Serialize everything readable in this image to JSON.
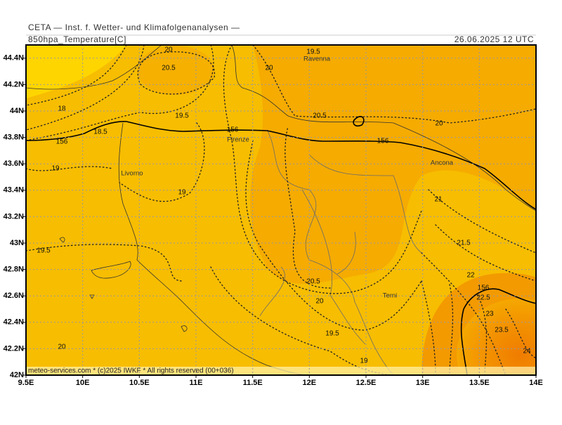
{
  "header": {
    "institute": "CETA — Inst. f. Wetter- und Klimafolgenanalysen —",
    "field": "850hpa_Temperature[C]",
    "valid_time": "26.06.2025 12 UTC"
  },
  "footer": "meteo-services.com * (c)2025 IWKF * All rights reserved (00+036)",
  "axes": {
    "lat_labels": [
      "42N",
      "42.2N",
      "42.4N",
      "42.6N",
      "42.8N",
      "43N",
      "43.2N",
      "43.4N",
      "43.6N",
      "43.8N",
      "44N",
      "44.2N",
      "44.4N"
    ],
    "lon_labels": [
      "9.5E",
      "10E",
      "10.5E",
      "11E",
      "11.5E",
      "12E",
      "12.5E",
      "13E",
      "13.5E",
      "14E"
    ]
  },
  "cities": [
    "Ravenna",
    "Firenze",
    "Livorno",
    "Ancona",
    "Terni"
  ],
  "contour_labels": [
    "20",
    "19.5",
    "20.5",
    "20",
    "18",
    "19.5",
    "20.5",
    "20",
    "18.5",
    "156",
    "156",
    "156",
    "19",
    "19",
    "21",
    "21.5",
    "19.5",
    "22",
    "20.5",
    "156",
    "22.5",
    "20",
    "23",
    "23.5",
    "19.5",
    "20",
    "24",
    "19"
  ]
}
